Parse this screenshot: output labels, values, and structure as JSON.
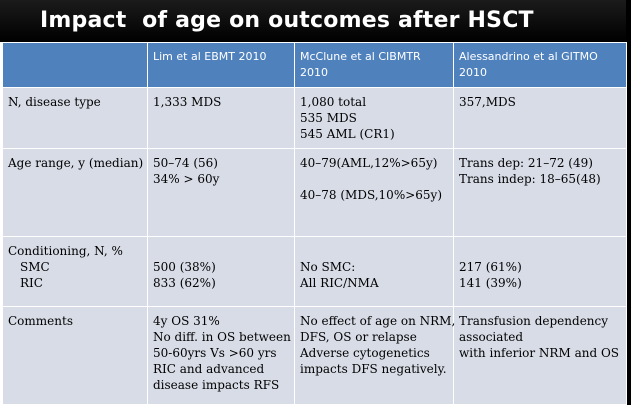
{
  "title": "Impact  of age on outcomes after HSCT",
  "colors": {
    "header_bg": "#4f81bd",
    "row_bg": "#d8dce7",
    "title_bg": "#000000"
  },
  "header": [
    "",
    "Lim et al EBMT 2010",
    "McClune et al CIBMTR 2010",
    "Alessandrino et al GITMO 2010"
  ],
  "rows": [
    {
      "label": [
        "N, disease type"
      ],
      "c1": [
        "1,333 MDS"
      ],
      "c2": [
        "1,080 total",
        "535 MDS",
        "545 AML (CR1)"
      ],
      "c3": [
        "357,MDS"
      ]
    },
    {
      "label": [
        "Age range, y (median)"
      ],
      "c1": [
        "50–74 (56)",
        "34% > 60y"
      ],
      "c2": [
        "40–79(AML,12%>65y)",
        "",
        "40–78 (MDS,10%>65y)"
      ],
      "c3": [
        "Trans dep: 21–72 (49)",
        "Trans indep: 18–65(48)"
      ]
    },
    {
      "label": [
        "Conditioning, N, %",
        "SMC",
        "RIC"
      ],
      "c1": [
        "",
        "500 (38%)",
        "833 (62%)"
      ],
      "c2": [
        "",
        "No SMC:",
        "All RIC/NMA"
      ],
      "c3": [
        "",
        "217 (61%)",
        "141 (39%)"
      ]
    },
    {
      "label": [
        "Comments"
      ],
      "c1": [
        "4y OS 31%",
        "No diff. in OS between",
        "50-60yrs Vs >60 yrs",
        "RIC and advanced",
        "disease impacts RFS"
      ],
      "c2": [
        "No effect of age on NRM,",
        "DFS, OS or relapse",
        "Adverse cytogenetics",
        "impacts DFS negatively."
      ],
      "c3": [
        "Transfusion dependency",
        "associated",
        "with inferior NRM and OS"
      ]
    }
  ]
}
